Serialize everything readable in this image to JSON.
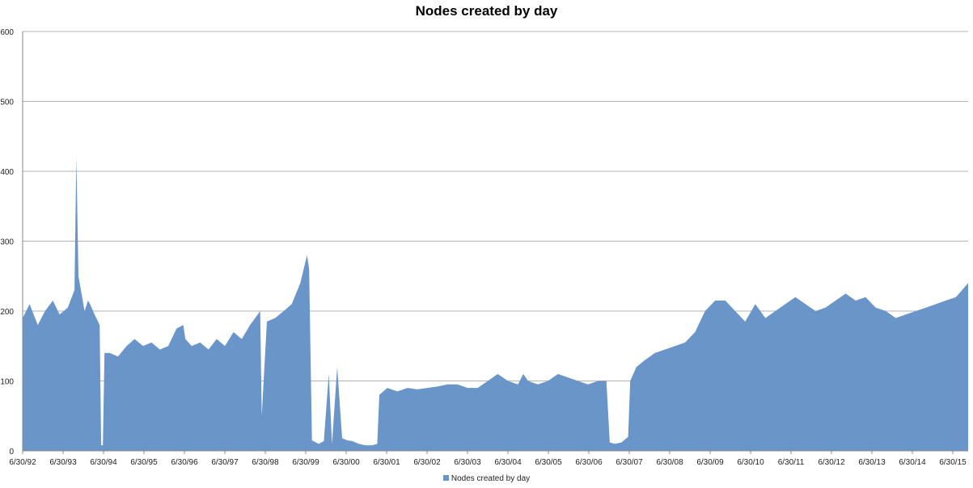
{
  "chart_data": {
    "type": "area",
    "title": "Nodes created by day",
    "xlabel": "",
    "ylabel": "",
    "ylim": [
      0,
      600
    ],
    "y_ticks": [
      0,
      100,
      200,
      300,
      400,
      500,
      600
    ],
    "x_range": [
      "1992-06-30",
      "2016-01-20"
    ],
    "x_tick_labels": [
      "6/30/92",
      "6/30/93",
      "6/30/94",
      "6/30/95",
      "6/30/96",
      "6/30/97",
      "6/30/98",
      "6/30/99",
      "6/30/00",
      "6/30/01",
      "6/30/02",
      "6/30/03",
      "6/30/04",
      "6/30/05",
      "6/30/06",
      "6/30/07",
      "6/30/08",
      "6/30/09",
      "6/30/10",
      "6/30/11",
      "6/30/12",
      "6/30/13",
      "6/30/14",
      "6/30/15"
    ],
    "grid": true,
    "legend_position": "bottom",
    "series": [
      {
        "name": "Nodes created by day",
        "color": "#6a95c8",
        "x": [
          "1992-06-30",
          "1992-09-01",
          "1992-11-15",
          "1993-01-20",
          "1993-04-01",
          "1993-06-01",
          "1993-08-15",
          "1993-10-15",
          "1993-11-01",
          "1993-11-20",
          "1994-01-15",
          "1994-02-15",
          "1994-03-05",
          "1994-04-15",
          "1994-06-01",
          "1994-06-15",
          "1994-06-30",
          "1994-07-15",
          "1994-09-01",
          "1994-11-15",
          "1995-02-01",
          "1995-04-15",
          "1995-07-01",
          "1995-09-15",
          "1995-12-01",
          "1996-02-15",
          "1996-05-01",
          "1996-07-01",
          "1996-07-20",
          "1996-09-15",
          "1996-12-01",
          "1997-02-15",
          "1997-05-01",
          "1997-07-15",
          "1997-10-01",
          "1997-12-15",
          "1998-03-01",
          "1998-06-01",
          "1998-06-15",
          "1998-08-01",
          "1998-10-15",
          "1999-01-01",
          "1999-03-15",
          "1999-06-01",
          "1999-08-01",
          "1999-08-20",
          "1999-09-15",
          "1999-11-15",
          "2000-01-01",
          "2000-02-15",
          "2000-03-15",
          "2000-05-01",
          "2000-06-15",
          "2000-08-01",
          "2000-09-15",
          "2000-10-15",
          "2000-11-15",
          "2001-01-15",
          "2001-03-15",
          "2001-05-01",
          "2001-05-20",
          "2001-08-01",
          "2001-11-01",
          "2002-02-01",
          "2002-05-01",
          "2002-08-01",
          "2002-11-01",
          "2003-02-01",
          "2003-05-01",
          "2003-08-01",
          "2003-11-01",
          "2004-02-01",
          "2004-05-01",
          "2004-08-01",
          "2004-11-01",
          "2004-12-20",
          "2005-02-01",
          "2005-05-01",
          "2005-08-01",
          "2005-11-01",
          "2006-02-01",
          "2006-05-01",
          "2006-08-01",
          "2006-11-01",
          "2007-01-15",
          "2007-02-15",
          "2007-04-01",
          "2007-06-01",
          "2007-08-01",
          "2007-08-20",
          "2007-10-15",
          "2008-01-01",
          "2008-04-01",
          "2008-07-01",
          "2008-10-01",
          "2009-01-01",
          "2009-04-01",
          "2009-07-01",
          "2009-10-01",
          "2010-01-01",
          "2010-04-01",
          "2010-07-01",
          "2010-10-01",
          "2011-01-01",
          "2011-04-01",
          "2011-07-01",
          "2011-10-01",
          "2012-01-01",
          "2012-04-01",
          "2012-07-01",
          "2012-10-01",
          "2013-01-01",
          "2013-04-01",
          "2013-07-01",
          "2013-10-01",
          "2014-01-01",
          "2014-04-01",
          "2014-07-01",
          "2014-10-01",
          "2015-01-01",
          "2015-04-01",
          "2015-07-01",
          "2015-10-01",
          "2016-01-20"
        ],
        "values": [
          190,
          210,
          180,
          200,
          215,
          195,
          205,
          230,
          420,
          250,
          200,
          215,
          210,
          195,
          180,
          8,
          8,
          140,
          140,
          135,
          150,
          160,
          150,
          155,
          145,
          150,
          175,
          180,
          160,
          150,
          155,
          145,
          160,
          150,
          170,
          160,
          180,
          200,
          50,
          185,
          190,
          200,
          210,
          240,
          280,
          260,
          15,
          10,
          14,
          110,
          10,
          120,
          18,
          15,
          14,
          12,
          10,
          8,
          8,
          10,
          80,
          90,
          85,
          90,
          88,
          90,
          92,
          95,
          95,
          90,
          90,
          100,
          110,
          100,
          95,
          110,
          100,
          95,
          100,
          110,
          105,
          100,
          95,
          100,
          100,
          12,
          10,
          12,
          20,
          100,
          120,
          130,
          140,
          145,
          150,
          155,
          170,
          200,
          215,
          215,
          200,
          185,
          210,
          190,
          200,
          210,
          220,
          210,
          200,
          205,
          215,
          225,
          215,
          220,
          205,
          200,
          190,
          195,
          200,
          205,
          210,
          215,
          220,
          240
        ]
      }
    ]
  }
}
